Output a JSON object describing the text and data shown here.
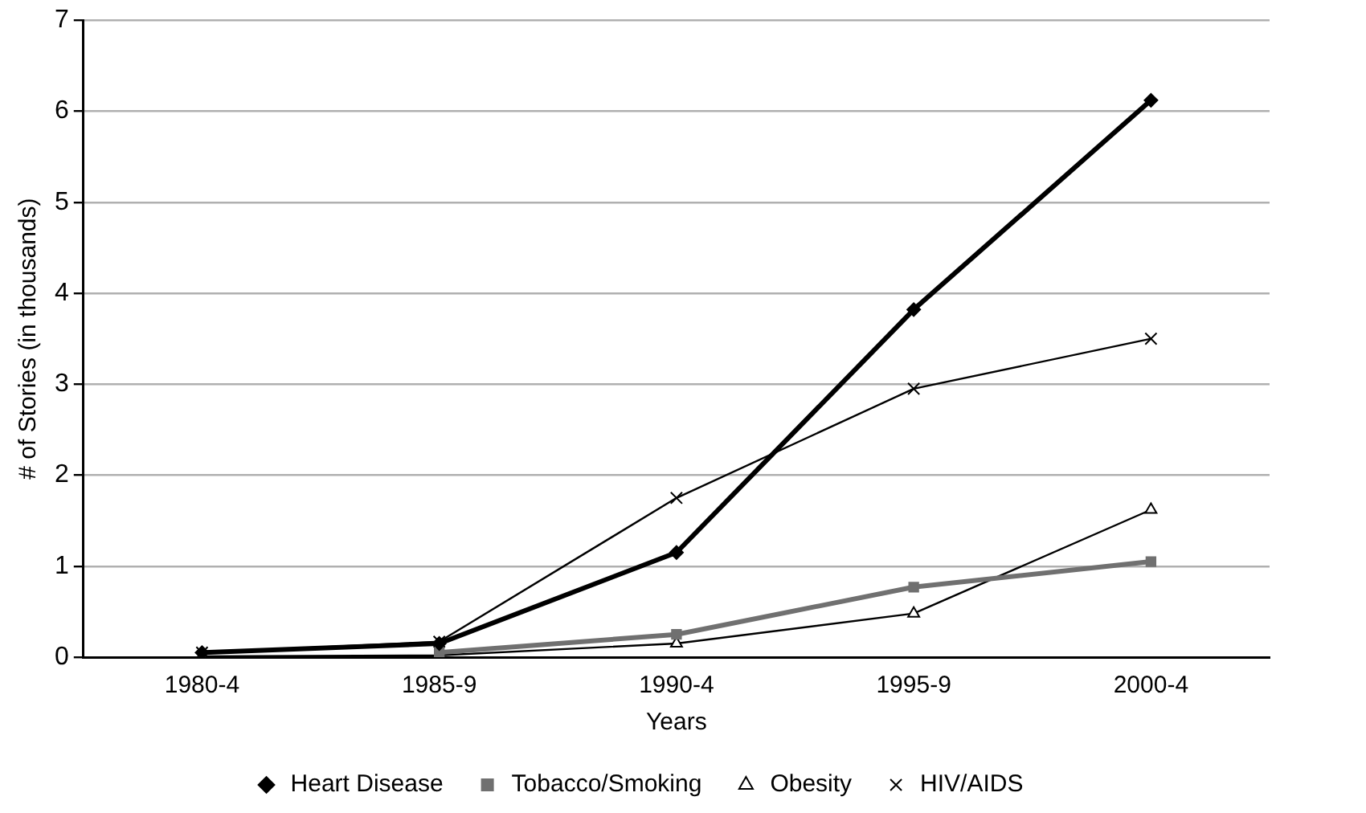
{
  "chart_data": {
    "type": "line",
    "xlabel": "Years",
    "ylabel": "# of Stories (in thousands)",
    "categories": [
      "1980-4",
      "1985-9",
      "1990-4",
      "1995-9",
      "2000-4"
    ],
    "series": [
      {
        "name": "Heart Disease",
        "color": "#000000",
        "marker": "diamond",
        "values": [
          0.05,
          0.15,
          1.15,
          3.82,
          6.12
        ]
      },
      {
        "name": "Tobacco/Smoking",
        "color": "#707070",
        "marker": "square",
        "values": [
          null,
          0.05,
          0.25,
          0.77,
          1.05
        ]
      },
      {
        "name": "Obesity",
        "color": "#000000",
        "marker": "triangle",
        "values": [
          0.01,
          0.02,
          0.15,
          0.48,
          1.62
        ]
      },
      {
        "name": "HIV/AIDS",
        "color": "#000000",
        "marker": "cross",
        "values": [
          0.05,
          0.17,
          1.75,
          2.95,
          3.5
        ]
      }
    ],
    "ylim": [
      0,
      7
    ],
    "yticks": [
      0,
      1,
      2,
      3,
      4,
      5,
      6,
      7
    ],
    "grid": "y",
    "legend": "bottom"
  }
}
